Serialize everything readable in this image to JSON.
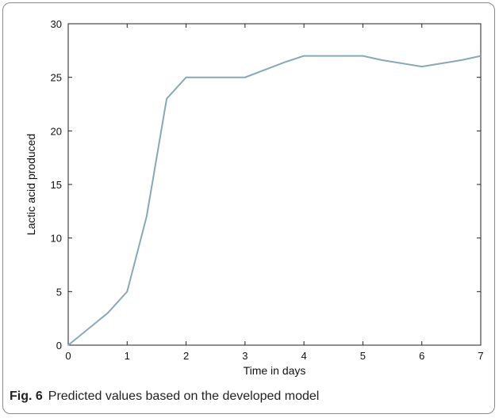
{
  "caption": {
    "label": "Fig. 6",
    "text": "Predicted values based on the developed model"
  },
  "chart_data": {
    "type": "line",
    "title": "",
    "xlabel": "Time in days",
    "ylabel": "Lactic acid produced",
    "xlim": [
      0,
      7
    ],
    "ylim": [
      0,
      30
    ],
    "xticks": [
      0,
      1,
      2,
      3,
      4,
      5,
      6,
      7
    ],
    "yticks": [
      0,
      5,
      10,
      15,
      20,
      25,
      30
    ],
    "grid": false,
    "line_color": "#87a9b6",
    "series": [
      {
        "x": [
          0,
          0.67,
          1,
          1.33,
          1.67,
          2,
          3,
          3.67,
          4,
          5,
          5.33,
          6,
          6.67,
          7
        ],
        "y": [
          0,
          3,
          5,
          12,
          23,
          25,
          25,
          26.4,
          27,
          27,
          26.6,
          26,
          26.6,
          27
        ]
      }
    ]
  }
}
